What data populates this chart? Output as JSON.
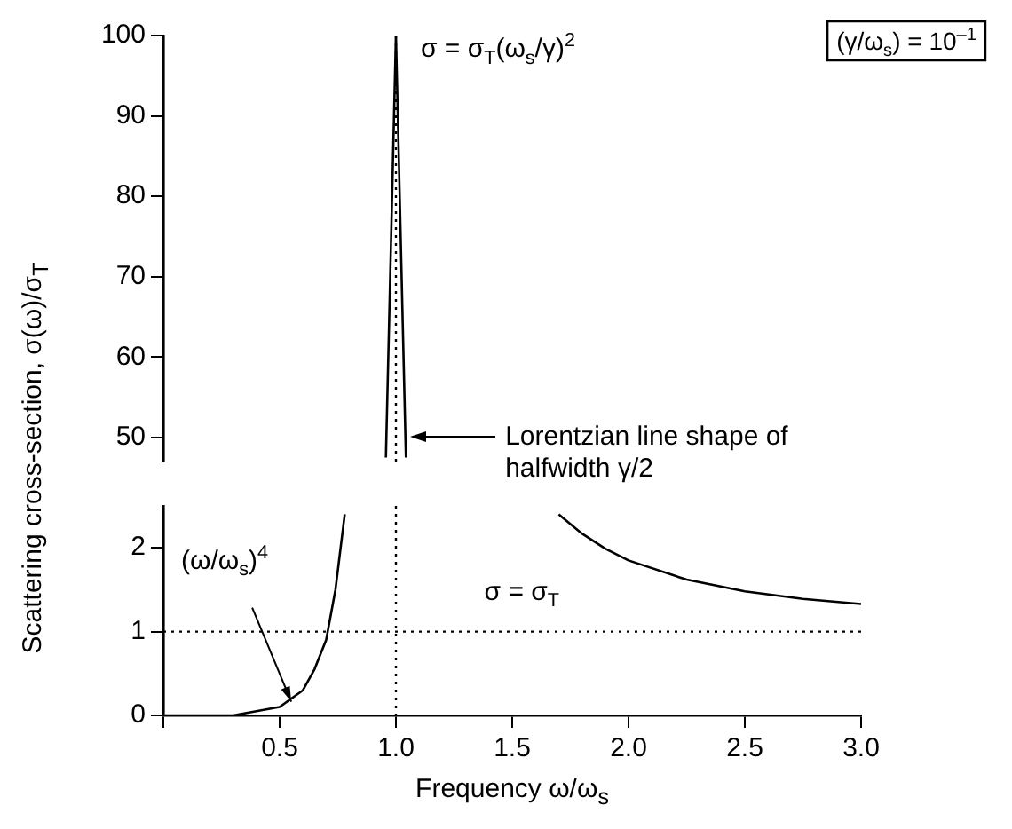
{
  "chart_data": [
    {
      "type": "line",
      "marker": "none",
      "tick_labels": "y",
      "xlim": [
        0,
        3
      ],
      "ylim": [
        47,
        100
      ],
      "yticks": [
        50,
        60,
        70,
        80,
        90,
        100
      ],
      "series": [
        {
          "x": [
            0.957,
            1.0,
            1.043
          ],
          "values": [
            47.5,
            100,
            47.5
          ],
          "color": "#000000"
        }
      ],
      "ref_lines": [
        {
          "axis": "x",
          "value": 1
        }
      ],
      "annotations": [
        {
          "text": "σ = σ$_{T}$(ω$_{s}$/γ)$^{2}$",
          "x": 1.0,
          "y": 100
        },
        "(γ/ω$_{s}$) = 10$^{–1}$",
        "Lorentzian line shape of halfwidth γ/2"
      ]
    },
    {
      "type": "line",
      "marker": "none",
      "xlabel": "Frequency ω/ω$_{s}$",
      "ylabel": "Scattering cross-section, σ(ω)/σ$_{T}$",
      "xlim": [
        0,
        3
      ],
      "ylim": [
        0,
        2.5
      ],
      "xticks": [
        {
          "value": 0,
          "label": null
        },
        {
          "value": 0.5,
          "label": "0.5"
        },
        {
          "value": 1,
          "label": "1.0"
        },
        {
          "value": 1.5,
          "label": "1.5"
        },
        {
          "value": 2,
          "label": "2.0"
        },
        {
          "value": 2.5,
          "label": "2.5"
        },
        {
          "value": 3,
          "label": "3.0"
        }
      ],
      "yticks": [
        0,
        1,
        2
      ],
      "series": [
        {
          "x": [
            0,
            0.2,
            0.3,
            0.4,
            0.5,
            0.6,
            0.65,
            0.7,
            0.74,
            0.78
          ],
          "values": [
            0,
            0,
            0,
            0.05,
            0.1,
            0.3,
            0.55,
            0.9,
            1.5,
            2.4
          ],
          "color": "#000000"
        },
        {
          "x": [
            1.7,
            1.8,
            1.9,
            2.0,
            2.25,
            2.5,
            2.75,
            3.0
          ],
          "values": [
            2.4,
            2.17,
            1.99,
            1.85,
            1.62,
            1.48,
            1.39,
            1.33
          ],
          "color": "#000000"
        }
      ],
      "ref_lines": [
        {
          "axis": "y",
          "value": 1,
          "label": "σ = σ$_{T}$"
        },
        {
          "axis": "x",
          "value": 1
        }
      ],
      "annotations": [
        {
          "text": "(ω/ω$_{s}$)$^{4}$",
          "x": 0.55,
          "y": 0.1
        }
      ]
    }
  ]
}
